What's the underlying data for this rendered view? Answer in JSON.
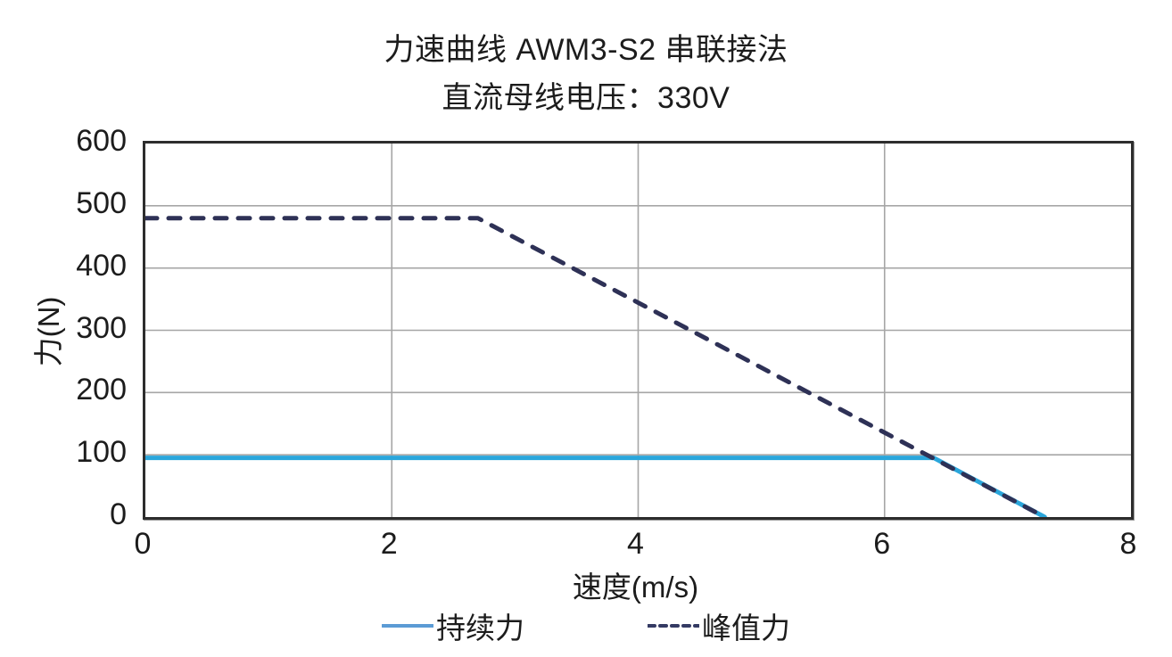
{
  "chart_data": {
    "type": "line",
    "title": "力速曲线 AWM3-S2 串联接法",
    "subtitle": "直流母线电压：330V",
    "xlabel": "速度(m/s)",
    "ylabel": "力(N)",
    "xlim": [
      0,
      8
    ],
    "ylim": [
      0,
      600
    ],
    "x_ticks": [
      0,
      2,
      4,
      6,
      8
    ],
    "y_ticks": [
      0,
      100,
      200,
      300,
      400,
      500,
      600
    ],
    "grid": true,
    "legend_position": "bottom",
    "series": [
      {
        "name": "持续力",
        "style": "solid",
        "color": "#2aa6db",
        "legend_color": "#5b9bd5",
        "points": [
          [
            0,
            95
          ],
          [
            6.4,
            95
          ],
          [
            7.3,
            0
          ]
        ]
      },
      {
        "name": "峰值力",
        "style": "dashed",
        "color": "#2e3156",
        "legend_color": "#343a63",
        "points": [
          [
            0,
            480
          ],
          [
            2.7,
            480
          ],
          [
            7.3,
            0
          ]
        ]
      }
    ]
  },
  "colors": {
    "grid": "#a6a6a6",
    "border": "#2d2d2d",
    "text": "#1c1c1c"
  }
}
